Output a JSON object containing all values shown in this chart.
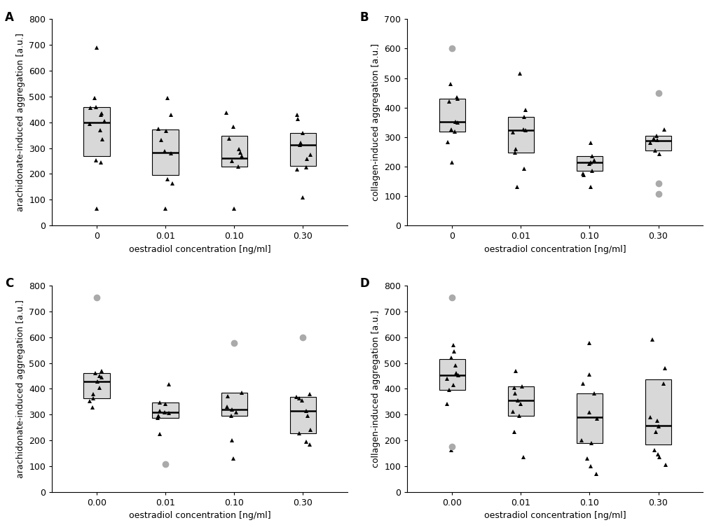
{
  "panels": {
    "A": {
      "ylabel": "arachidonate-induced aggregation [a.u.]",
      "xlabel": "oestradiol concentration [ng/ml]",
      "ylim": [
        0,
        800
      ],
      "yticks": [
        0,
        100,
        200,
        300,
        400,
        500,
        600,
        700,
        800
      ],
      "xtick_labels": [
        "0",
        "0.01",
        "0.10",
        "0.30"
      ],
      "groups": {
        "0": {
          "median": 400,
          "q1": 270,
          "q3": 460,
          "triangles": [
            245,
            252,
            335,
            370,
            395,
            405,
            430,
            435,
            455,
            460,
            495
          ],
          "outliers_gray": [],
          "outliers_black_tri": [
            690,
            65
          ]
        },
        "0.01": {
          "median": 283,
          "q1": 195,
          "q3": 372,
          "triangles": [
            162,
            180,
            280,
            287,
            330,
            367,
            375,
            430,
            495
          ],
          "outliers_gray": [],
          "outliers_black_tri": [
            65
          ]
        },
        "0.10": {
          "median": 262,
          "q1": 228,
          "q3": 347,
          "triangles": [
            228,
            250,
            268,
            282,
            295,
            338,
            382,
            438
          ],
          "outliers_gray": [],
          "outliers_black_tri": [
            65
          ]
        },
        "0.30": {
          "median": 312,
          "q1": 230,
          "q3": 358,
          "triangles": [
            218,
            225,
            258,
            275,
            312,
            320,
            358,
            412,
            430
          ],
          "outliers_gray": [],
          "outliers_black_tri": [
            110
          ]
        }
      }
    },
    "B": {
      "ylabel": "collagen-induced aggregation [a.u.]",
      "xlabel": "oestradiol concentration [ng/ml]",
      "ylim": [
        0,
        700
      ],
      "yticks": [
        0,
        100,
        200,
        300,
        400,
        500,
        600,
        700
      ],
      "xtick_labels": [
        "0",
        "0.01",
        "0.10",
        "0.30"
      ],
      "groups": {
        "0": {
          "median": 352,
          "q1": 318,
          "q3": 430,
          "triangles": [
            215,
            282,
            318,
            325,
            350,
            352,
            420,
            430,
            435,
            480
          ],
          "outliers_gray": [
            600
          ],
          "outliers_black_tri": []
        },
        "0.01": {
          "median": 322,
          "q1": 248,
          "q3": 368,
          "triangles": [
            130,
            192,
            248,
            260,
            315,
            322,
            325,
            368,
            392,
            515
          ],
          "outliers_gray": [],
          "outliers_black_tri": []
        },
        "0.10": {
          "median": 215,
          "q1": 185,
          "q3": 235,
          "triangles": [
            130,
            170,
            175,
            185,
            210,
            215,
            222,
            235,
            280
          ],
          "outliers_gray": [],
          "outliers_black_tri": []
        },
        "0.30": {
          "median": 288,
          "q1": 255,
          "q3": 305,
          "triangles": [
            242,
            255,
            280,
            290,
            295,
            305,
            325
          ],
          "outliers_gray": [
            450,
            142,
            108
          ],
          "outliers_black_tri": []
        }
      }
    },
    "C": {
      "ylabel": "arachidonate-induced aggregation [a.u.]",
      "xlabel": "oestradiol concentration [ng/ml]",
      "ylim": [
        0,
        800
      ],
      "yticks": [
        0,
        100,
        200,
        300,
        400,
        500,
        600,
        700,
        800
      ],
      "xtick_labels": [
        "0.00",
        "0.01",
        "0.10",
        "0.30"
      ],
      "groups": {
        "0.00": {
          "median": 428,
          "q1": 362,
          "q3": 462,
          "triangles": [
            328,
            352,
            362,
            380,
            405,
            428,
            445,
            450,
            462,
            468
          ],
          "outliers_gray": [
            755
          ],
          "outliers_black_tri": []
        },
        "0.01": {
          "median": 310,
          "q1": 288,
          "q3": 348,
          "triangles": [
            225,
            288,
            295,
            305,
            310,
            315,
            342,
            348,
            418
          ],
          "outliers_gray": [
            107
          ],
          "outliers_black_tri": []
        },
        "0.10": {
          "median": 320,
          "q1": 295,
          "q3": 385,
          "triangles": [
            130,
            200,
            295,
            308,
            320,
            330,
            370,
            385
          ],
          "outliers_gray": [
            578
          ],
          "outliers_black_tri": []
        },
        "0.30": {
          "median": 315,
          "q1": 228,
          "q3": 368,
          "triangles": [
            185,
            195,
            228,
            242,
            295,
            315,
            355,
            362,
            368,
            378
          ],
          "outliers_gray": [
            600
          ],
          "outliers_black_tri": []
        }
      }
    },
    "D": {
      "ylabel": "collagen-induced aggregation [a.u.]",
      "xlabel": "oestradiol concentration [ng/ml]",
      "ylim": [
        0,
        800
      ],
      "yticks": [
        0,
        100,
        200,
        300,
        400,
        500,
        600,
        700,
        800
      ],
      "xtick_labels": [
        "0.00",
        "0.01",
        "0.10",
        "0.30"
      ],
      "groups": {
        "0.00": {
          "median": 452,
          "q1": 395,
          "q3": 515,
          "triangles": [
            162,
            342,
            395,
            415,
            440,
            452,
            462,
            490,
            520,
            545,
            568
          ],
          "outliers_gray": [
            175,
            755
          ],
          "outliers_black_tri": []
        },
        "0.01": {
          "median": 355,
          "q1": 295,
          "q3": 410,
          "triangles": [
            135,
            232,
            295,
            312,
            342,
            355,
            382,
            405,
            410,
            468
          ],
          "outliers_gray": [],
          "outliers_black_tri": []
        },
        "0.10": {
          "median": 290,
          "q1": 188,
          "q3": 382,
          "triangles": [
            70,
            100,
            130,
            188,
            200,
            285,
            308,
            382,
            420,
            455,
            578
          ],
          "outliers_gray": [],
          "outliers_black_tri": []
        },
        "0.30": {
          "median": 258,
          "q1": 185,
          "q3": 435,
          "triangles": [
            105,
            135,
            145,
            162,
            232,
            255,
            275,
            290,
            420,
            480,
            590
          ],
          "outliers_gray": [],
          "outliers_black_tri": []
        }
      }
    }
  },
  "box_color": "#d8d8d8",
  "box_edge_color": "#000000",
  "median_color": "#000000",
  "triangle_color": "#000000",
  "outlier_color": "#aaaaaa",
  "background_color": "#ffffff",
  "font_size": 9,
  "label_font_size": 9,
  "panel_label_font_size": 12,
  "box_width": 0.38,
  "jitter_seed": 42
}
